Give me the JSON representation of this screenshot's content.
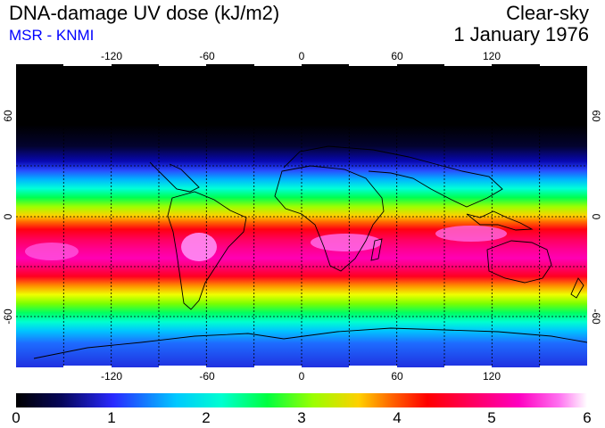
{
  "header": {
    "title": "DNA-damage UV dose (kJ/m2)",
    "source": "MSR - KNMI",
    "sky_condition": "Clear-sky",
    "date": "1 January 1976"
  },
  "map": {
    "lon_ticks": [
      "-120",
      "-60",
      "0",
      "60",
      "120"
    ],
    "lat_ticks": [
      "60",
      "0",
      "-60"
    ],
    "gridlines": true,
    "projection": "equirectangular"
  },
  "colorbar": {
    "labels": [
      "0",
      "1",
      "2",
      "3",
      "4",
      "5",
      "6"
    ],
    "min": 0,
    "max": 6,
    "colors": [
      "#000000",
      "#06065a",
      "#2929ff",
      "#00c8ff",
      "#00ffd0",
      "#00ff40",
      "#9aff00",
      "#ffd000",
      "#ff6000",
      "#ff0000",
      "#ff0060",
      "#ff00c0",
      "#ff70f0",
      "#ffffff"
    ]
  }
}
